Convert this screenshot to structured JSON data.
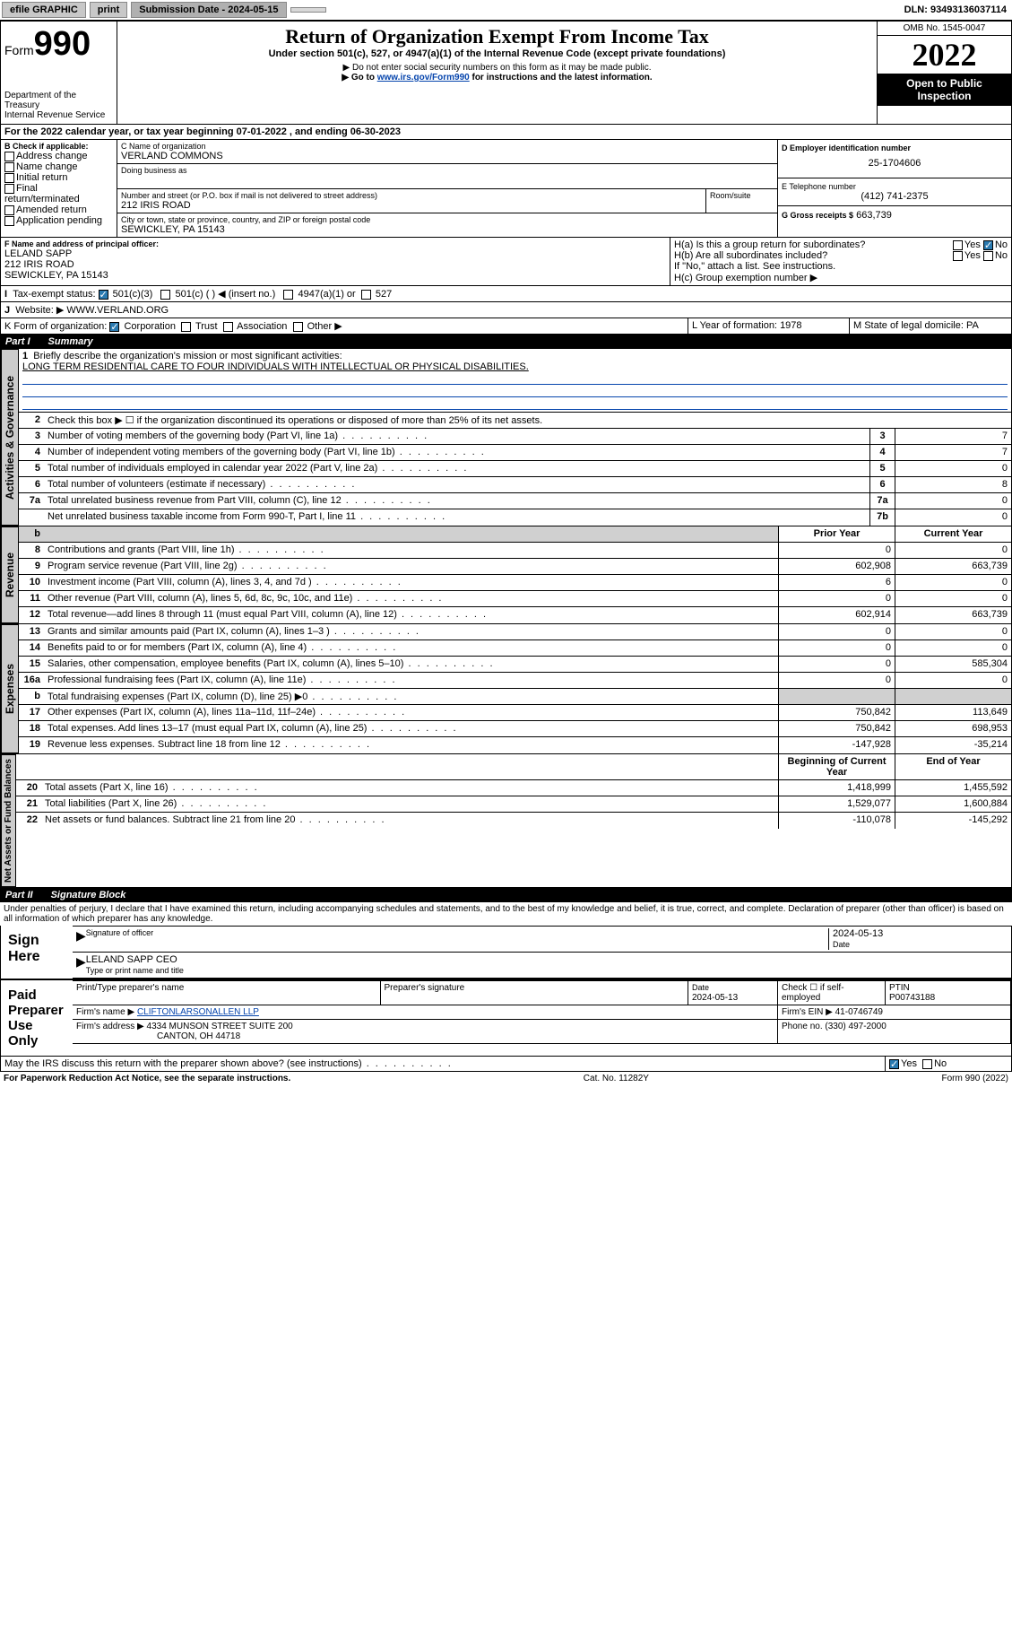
{
  "topbar": {
    "efile": "efile GRAPHIC",
    "print": "print",
    "submission_label": "Submission Date - 2024-05-15",
    "dln": "DLN: 93493136037114"
  },
  "header": {
    "form_prefix": "Form",
    "form_num": "990",
    "dept": "Department of the Treasury",
    "irs": "Internal Revenue Service",
    "title": "Return of Organization Exempt From Income Tax",
    "subtitle": "Under section 501(c), 527, or 4947(a)(1) of the Internal Revenue Code (except private foundations)",
    "warn1": "▶ Do not enter social security numbers on this form as it may be made public.",
    "warn2_pre": "▶ Go to ",
    "warn2_link": "www.irs.gov/Form990",
    "warn2_post": " for instructions and the latest information.",
    "omb": "OMB No. 1545-0047",
    "year": "2022",
    "inspect": "Open to Public Inspection"
  },
  "period": {
    "line": "For the 2022 calendar year, or tax year beginning 07-01-2022   , and ending 06-30-2023"
  },
  "boxB": {
    "label": "B Check if applicable:",
    "items": [
      "Address change",
      "Name change",
      "Initial return",
      "Final return/terminated",
      "Amended return",
      "Application pending"
    ]
  },
  "boxC": {
    "name_label": "C Name of organization",
    "name": "VERLAND COMMONS",
    "dba_label": "Doing business as",
    "addr_label": "Number and street (or P.O. box if mail is not delivered to street address)",
    "room_label": "Room/suite",
    "addr": "212 IRIS ROAD",
    "city_label": "City or town, state or province, country, and ZIP or foreign postal code",
    "city": "SEWICKLEY, PA  15143"
  },
  "boxD": {
    "label": "D Employer identification number",
    "val": "25-1704606"
  },
  "boxE": {
    "label": "E Telephone number",
    "val": "(412) 741-2375"
  },
  "boxG": {
    "label": "G Gross receipts $",
    "val": "663,739"
  },
  "boxF": {
    "label": "F Name and address of principal officer:",
    "name": "LELAND SAPP",
    "addr1": "212 IRIS ROAD",
    "addr2": "SEWICKLEY, PA  15143"
  },
  "boxH": {
    "a": "H(a)  Is this a group return for subordinates?",
    "b": "H(b)  Are all subordinates included?",
    "note": "If \"No,\" attach a list. See instructions.",
    "c": "H(c)  Group exemption number ▶",
    "yes": "Yes",
    "no": "No"
  },
  "boxI": {
    "label": "Tax-exempt status:",
    "c3": "501(c)(3)",
    "c": "501(c) (  ) ◀ (insert no.)",
    "a1": "4947(a)(1) or",
    "s527": "527"
  },
  "boxJ": {
    "label": "Website: ▶",
    "val": "WWW.VERLAND.ORG"
  },
  "boxK": {
    "label": "K Form of organization:",
    "corp": "Corporation",
    "trust": "Trust",
    "assoc": "Association",
    "other": "Other ▶"
  },
  "boxL": {
    "label": "L Year of formation:",
    "val": "1978"
  },
  "boxM": {
    "label": "M State of legal domicile:",
    "val": "PA"
  },
  "part1": {
    "part": "Part I",
    "title": "Summary"
  },
  "summary": {
    "tabs": [
      "Activities & Governance",
      "Revenue",
      "Expenses",
      "Net Assets or Fund Balances"
    ],
    "mission_label": "Briefly describe the organization's mission or most significant activities:",
    "mission": "LONG TERM RESIDENTIAL CARE TO FOUR INDIVIDUALS WITH INTELLECTUAL OR PHYSICAL DISABILITIES.",
    "l2": "Check this box ▶ ☐  if the organization discontinued its operations or disposed of more than 25% of its net assets.",
    "rows_gov": [
      {
        "n": "3",
        "t": "Number of voting members of the governing body (Part VI, line 1a)",
        "b": "3",
        "v": "7"
      },
      {
        "n": "4",
        "t": "Number of independent voting members of the governing body (Part VI, line 1b)",
        "b": "4",
        "v": "7"
      },
      {
        "n": "5",
        "t": "Total number of individuals employed in calendar year 2022 (Part V, line 2a)",
        "b": "5",
        "v": "0"
      },
      {
        "n": "6",
        "t": "Total number of volunteers (estimate if necessary)",
        "b": "6",
        "v": "8"
      },
      {
        "n": "7a",
        "t": "Total unrelated business revenue from Part VIII, column (C), line 12",
        "b": "7a",
        "v": "0"
      },
      {
        "n": "",
        "t": "Net unrelated business taxable income from Form 990-T, Part I, line 11",
        "b": "7b",
        "v": "0"
      }
    ],
    "col_hdrs": {
      "py": "Prior Year",
      "cy": "Current Year"
    },
    "rows_rev": [
      {
        "n": "8",
        "t": "Contributions and grants (Part VIII, line 1h)",
        "py": "0",
        "cy": "0"
      },
      {
        "n": "9",
        "t": "Program service revenue (Part VIII, line 2g)",
        "py": "602,908",
        "cy": "663,739"
      },
      {
        "n": "10",
        "t": "Investment income (Part VIII, column (A), lines 3, 4, and 7d )",
        "py": "6",
        "cy": "0"
      },
      {
        "n": "11",
        "t": "Other revenue (Part VIII, column (A), lines 5, 6d, 8c, 9c, 10c, and 11e)",
        "py": "0",
        "cy": "0"
      },
      {
        "n": "12",
        "t": "Total revenue—add lines 8 through 11 (must equal Part VIII, column (A), line 12)",
        "py": "602,914",
        "cy": "663,739"
      }
    ],
    "rows_exp": [
      {
        "n": "13",
        "t": "Grants and similar amounts paid (Part IX, column (A), lines 1–3 )",
        "py": "0",
        "cy": "0"
      },
      {
        "n": "14",
        "t": "Benefits paid to or for members (Part IX, column (A), line 4)",
        "py": "0",
        "cy": "0"
      },
      {
        "n": "15",
        "t": "Salaries, other compensation, employee benefits (Part IX, column (A), lines 5–10)",
        "py": "0",
        "cy": "585,304"
      },
      {
        "n": "16a",
        "t": "Professional fundraising fees (Part IX, column (A), line 11e)",
        "py": "0",
        "cy": "0"
      },
      {
        "n": "b",
        "t": "Total fundraising expenses (Part IX, column (D), line 25) ▶0",
        "py": "",
        "cy": ""
      },
      {
        "n": "17",
        "t": "Other expenses (Part IX, column (A), lines 11a–11d, 11f–24e)",
        "py": "750,842",
        "cy": "113,649"
      },
      {
        "n": "18",
        "t": "Total expenses. Add lines 13–17 (must equal Part IX, column (A), line 25)",
        "py": "750,842",
        "cy": "698,953"
      },
      {
        "n": "19",
        "t": "Revenue less expenses. Subtract line 18 from line 12",
        "py": "-147,928",
        "cy": "-35,214"
      }
    ],
    "col_hdrs2": {
      "py": "Beginning of Current Year",
      "cy": "End of Year"
    },
    "rows_net": [
      {
        "n": "20",
        "t": "Total assets (Part X, line 16)",
        "py": "1,418,999",
        "cy": "1,455,592"
      },
      {
        "n": "21",
        "t": "Total liabilities (Part X, line 26)",
        "py": "1,529,077",
        "cy": "1,600,884"
      },
      {
        "n": "22",
        "t": "Net assets or fund balances. Subtract line 21 from line 20",
        "py": "-110,078",
        "cy": "-145,292"
      }
    ]
  },
  "part2": {
    "part": "Part II",
    "title": "Signature Block"
  },
  "sig": {
    "perjury": "Under penalties of perjury, I declare that I have examined this return, including accompanying schedules and statements, and to the best of my knowledge and belief, it is true, correct, and complete. Declaration of preparer (other than officer) is based on all information of which preparer has any knowledge.",
    "sign_here": "Sign Here",
    "sig_officer": "Signature of officer",
    "date": "2024-05-13",
    "date_label": "Date",
    "officer_name": "LELAND SAPP CEO",
    "type_name": "Type or print name and title",
    "paid": "Paid Preparer Use Only",
    "prep_name_label": "Print/Type preparer's name",
    "prep_sig_label": "Preparer's signature",
    "prep_date": "2024-05-13",
    "check_self": "Check ☐ if self-employed",
    "ptin_label": "PTIN",
    "ptin": "P00743188",
    "firm_name_label": "Firm's name    ▶",
    "firm_name": "CLIFTONLARSONALLEN LLP",
    "firm_ein_label": "Firm's EIN ▶",
    "firm_ein": "41-0746749",
    "firm_addr_label": "Firm's address ▶",
    "firm_addr1": "4334 MUNSON STREET SUITE 200",
    "firm_addr2": "CANTON, OH  44718",
    "phone_label": "Phone no.",
    "phone": "(330) 497-2000",
    "discuss": "May the IRS discuss this return with the preparer shown above? (see instructions)",
    "yes": "Yes",
    "no": "No"
  },
  "footer": {
    "left": "For Paperwork Reduction Act Notice, see the separate instructions.",
    "mid": "Cat. No. 11282Y",
    "right": "Form 990 (2022)"
  }
}
